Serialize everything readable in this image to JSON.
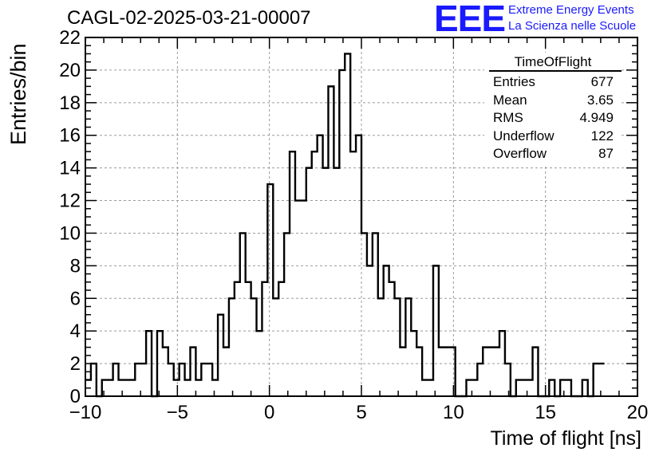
{
  "header": {
    "run_title": "CAGL-02-2025-03-21-00007",
    "logo_text": "EEE",
    "logo_line1": "Extreme Energy Events",
    "logo_line2": "La Scienza nelle Scuole"
  },
  "stats_box": {
    "title": "TimeOfFlight",
    "rows": [
      {
        "label": "Entries",
        "value": "677"
      },
      {
        "label": "Mean",
        "value": "3.65"
      },
      {
        "label": "RMS",
        "value": "4.949"
      },
      {
        "label": "Underflow",
        "value": "122"
      },
      {
        "label": "Overflow",
        "value": "87"
      }
    ]
  },
  "colors": {
    "line": "#000000",
    "logo": "#1a1aff",
    "grid": "#9a9a9a"
  },
  "chart_data": {
    "type": "histogram",
    "title": "CAGL-02-2025-03-21-00007",
    "xlabel": "Time of flight [ns]",
    "ylabel": "Entries/bin",
    "xlim": [
      -10,
      20
    ],
    "ylim": [
      0,
      22
    ],
    "grid": true,
    "x_ticks": [
      -10,
      -5,
      0,
      5,
      10,
      15,
      20
    ],
    "y_ticks": [
      0,
      2,
      4,
      6,
      8,
      10,
      12,
      14,
      16,
      18,
      20,
      22
    ],
    "bin_width": 0.3,
    "bin_start": -10,
    "values": [
      1,
      2,
      0,
      1,
      1,
      2,
      1,
      1,
      1,
      2,
      2,
      4,
      0,
      4,
      3,
      2,
      1,
      2,
      1,
      3,
      1,
      2,
      2,
      1,
      5,
      3,
      6,
      7,
      10,
      7,
      6,
      4,
      7,
      13,
      6,
      7,
      10,
      15,
      12,
      12,
      14,
      15,
      16,
      14,
      19,
      14,
      20,
      21,
      15,
      16,
      10,
      8,
      10,
      6,
      8,
      7,
      6,
      3,
      6,
      4,
      3,
      1,
      1,
      8,
      3,
      3,
      3,
      0,
      0,
      1,
      1,
      2,
      3,
      3,
      3,
      4,
      2,
      0,
      1,
      1,
      1,
      3,
      0,
      0,
      1,
      0,
      1,
      1,
      0,
      0,
      1,
      0,
      2,
      2
    ]
  }
}
